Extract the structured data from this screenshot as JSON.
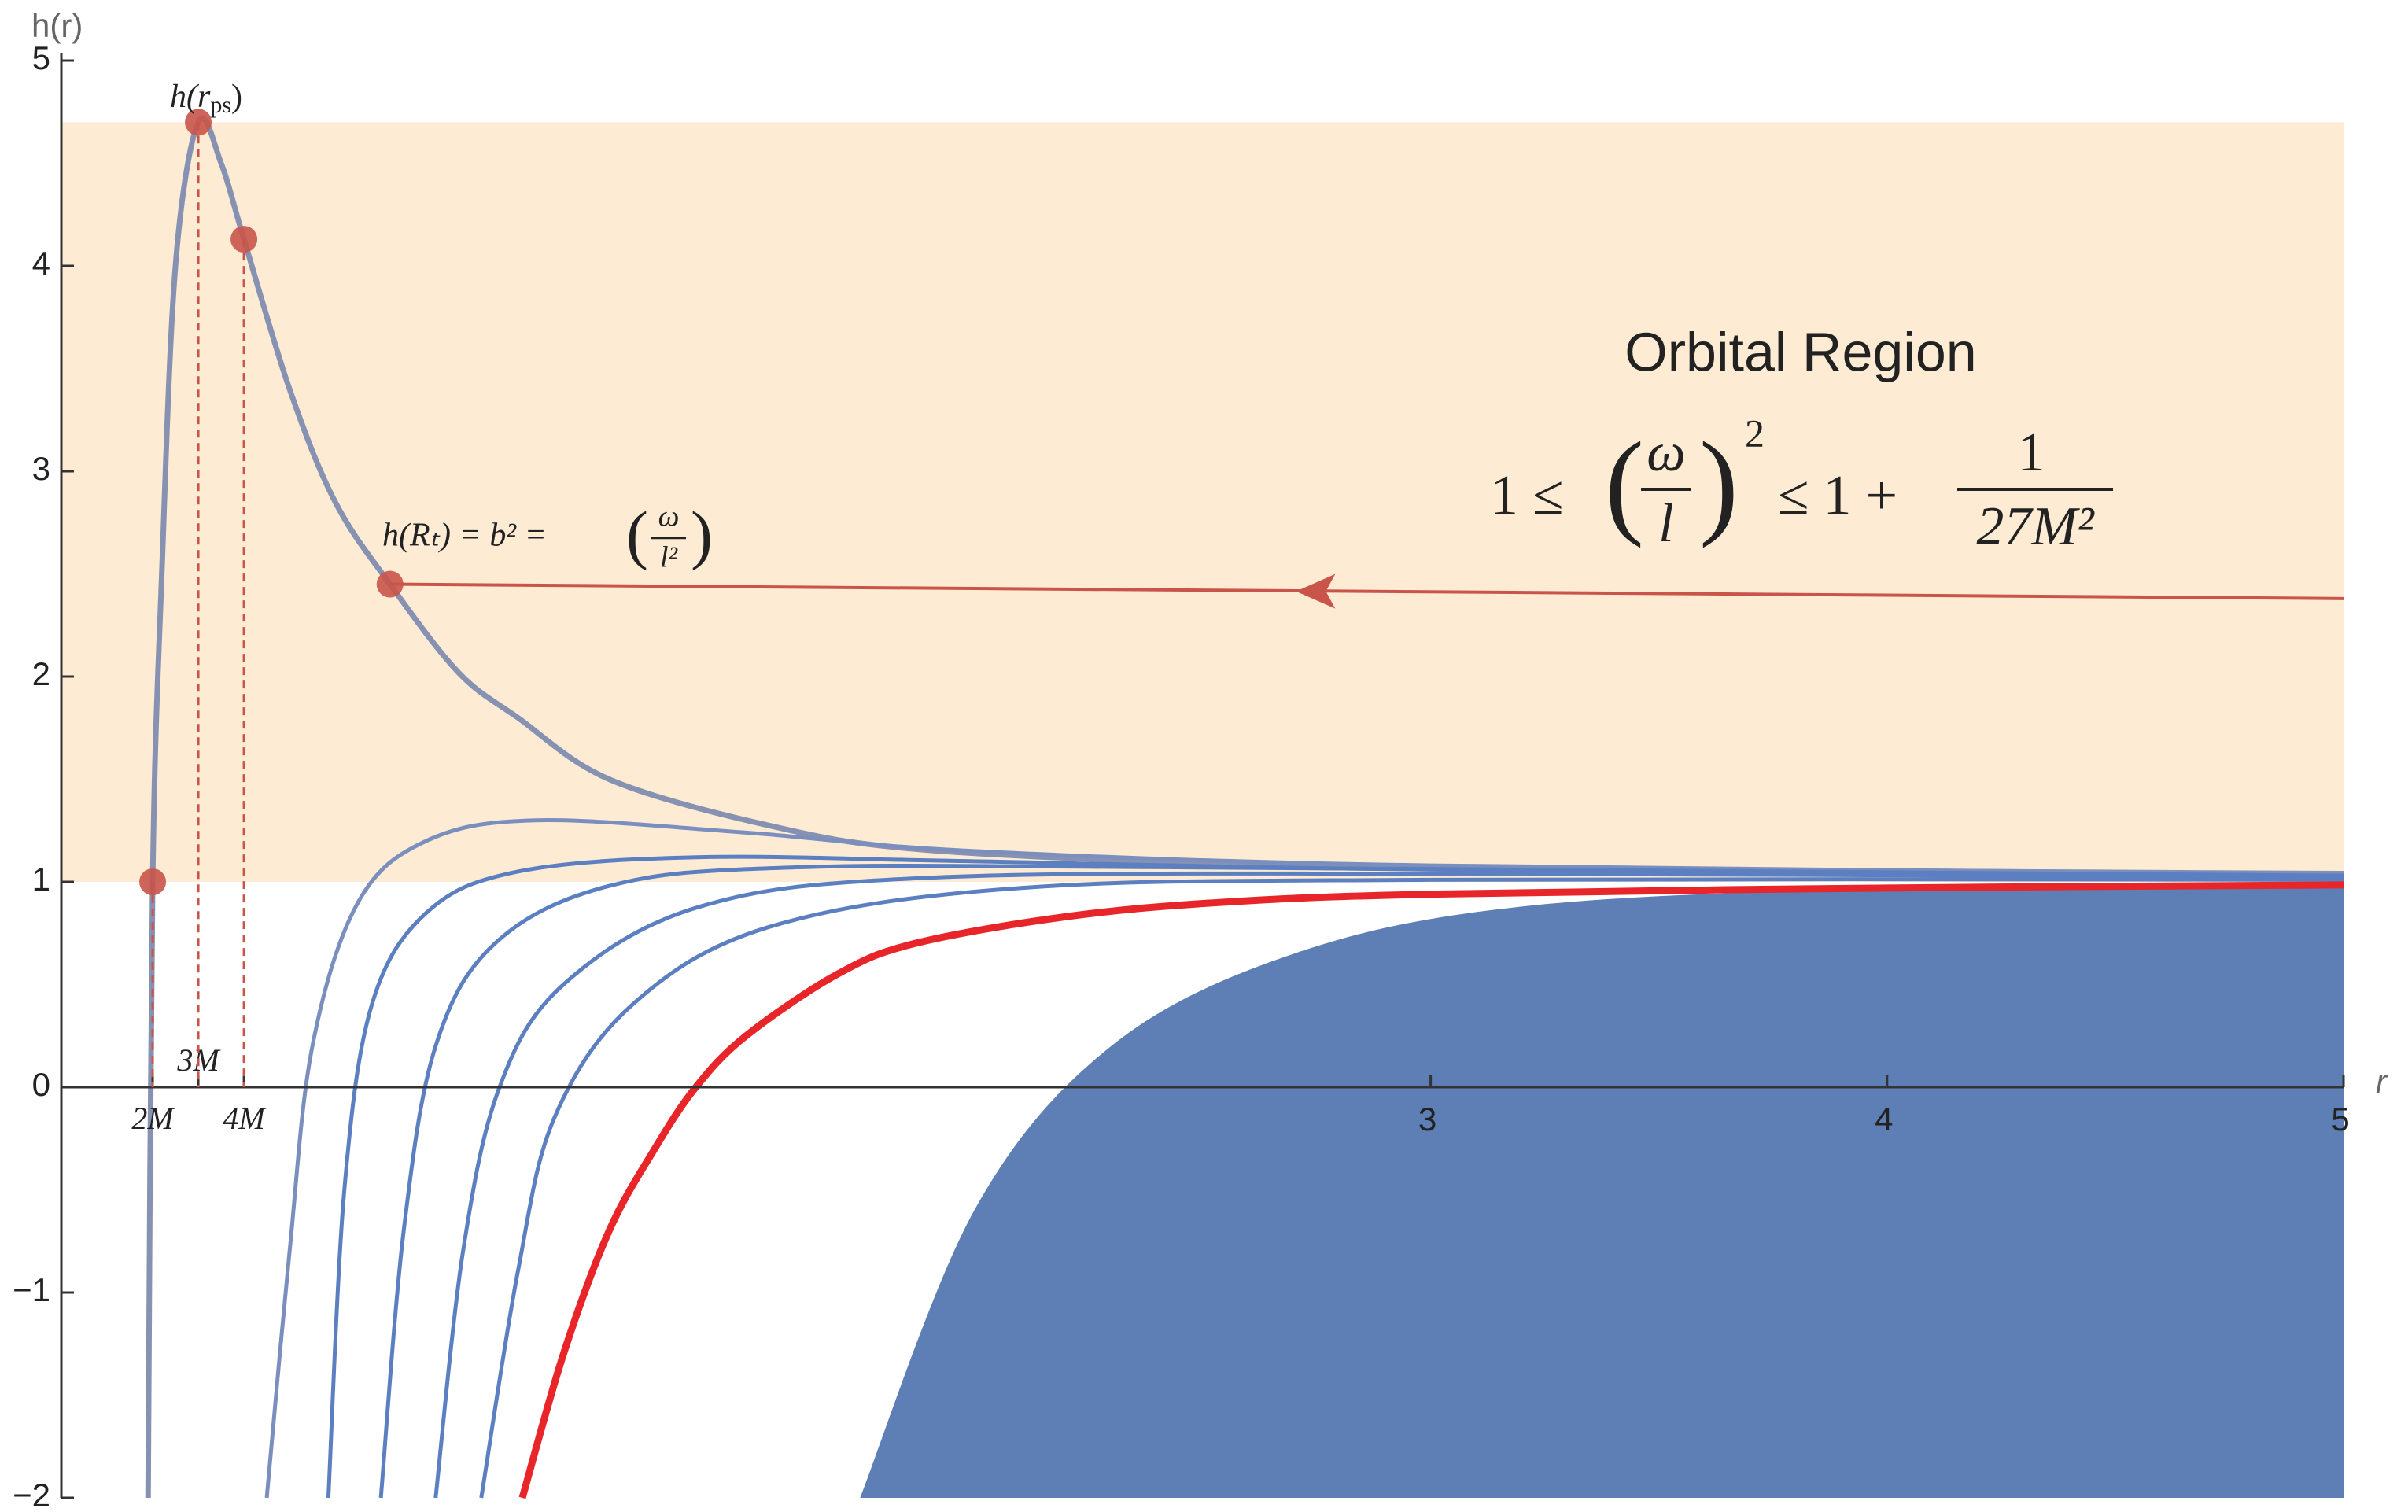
{
  "chart_data": {
    "type": "line",
    "ylabel": "h(r)",
    "xlabel": "r",
    "xlim": [
      0,
      5
    ],
    "ylim": [
      -2,
      5
    ],
    "xticks": [
      {
        "value": 0.2,
        "label": "2M"
      },
      {
        "value": 0.3,
        "label": "3M"
      },
      {
        "value": 0.4,
        "label": "4M"
      },
      3,
      4,
      5
    ],
    "yticks": [
      {
        "value": -2,
        "label": "−2"
      },
      {
        "value": -1,
        "label": "−1"
      },
      0,
      1,
      2,
      3,
      4,
      5
    ],
    "band": {
      "ylim": [
        1,
        4.7
      ],
      "color": "#fdebd4"
    },
    "area": {
      "color": "#5d7fb6",
      "x": [
        1.75,
        2.0,
        2.3,
        2.7,
        3.2,
        4,
        5
      ],
      "y": [
        -2,
        -0.6,
        0.2,
        0.65,
        0.88,
        0.97,
        1.0
      ]
    },
    "series": [
      {
        "color": "#8792b2",
        "x": [
          0.19,
          0.2,
          0.22,
          0.25,
          0.3,
          0.35,
          0.4,
          0.5,
          0.6,
          0.72,
          0.87,
          1.0,
          1.2,
          1.54,
          1.87,
          2.54,
          3.5,
          5
        ],
        "values": [
          -2,
          1.0,
          2.5,
          4.0,
          4.7,
          4.5,
          4.13,
          3.4,
          2.85,
          2.45,
          2.02,
          1.8,
          1.5,
          1.28,
          1.16,
          1.09,
          1.06,
          1.04
        ]
      },
      {
        "color": "#7b8fbf",
        "x": [
          0.45,
          0.5,
          0.55,
          0.65,
          0.8,
          1.04,
          1.5,
          2,
          3,
          5
        ],
        "values": [
          -2,
          -0.8,
          0.2,
          0.9,
          1.2,
          1.3,
          1.24,
          1.15,
          1.08,
          1.04
        ]
      },
      {
        "color": "#5b7fc0",
        "x": [
          0.585,
          0.62,
          0.68,
          0.8,
          1.0,
          1.4,
          2,
          3,
          5
        ],
        "values": [
          -2,
          -0.5,
          0.4,
          0.85,
          1.05,
          1.12,
          1.1,
          1.06,
          1.03
        ]
      },
      {
        "color": "#5b7fc0",
        "x": [
          0.7,
          0.75,
          0.82,
          0.95,
          1.2,
          1.6,
          2.5,
          5
        ],
        "values": [
          -2,
          -0.7,
          0.2,
          0.7,
          0.98,
          1.07,
          1.07,
          1.03
        ]
      },
      {
        "color": "#5b7fc0",
        "x": [
          0.82,
          0.88,
          0.96,
          1.1,
          1.4,
          1.9,
          3,
          5
        ],
        "values": [
          -2,
          -0.8,
          0,
          0.5,
          0.88,
          1.02,
          1.04,
          1.02
        ]
      },
      {
        "color": "#5b7fc0",
        "x": [
          0.92,
          1.0,
          1.08,
          1.25,
          1.55,
          2.1,
          3,
          5
        ],
        "values": [
          -2,
          -0.9,
          -0.15,
          0.4,
          0.78,
          0.97,
          1.01,
          1.01
        ]
      },
      {
        "color": "#e8262a",
        "x": [
          1.01,
          1.1,
          1.2,
          1.3,
          1.39,
          1.5,
          1.7,
          1.87,
          2.2,
          2.54,
          3,
          4,
          5
        ],
        "values": [
          -2,
          -1.3,
          -0.7,
          -0.3,
          0,
          0.25,
          0.55,
          0.7,
          0.83,
          0.9,
          0.94,
          0.97,
          0.985
        ]
      }
    ],
    "points": {
      "color": "#c9544a",
      "x": [
        0.2,
        0.3,
        0.4,
        0.72
      ],
      "y": [
        1.0,
        4.7,
        4.13,
        2.45
      ]
    },
    "arrow": {
      "color": "#c9544a",
      "x": [
        0.72,
        5
      ],
      "y": [
        2.45,
        2.38
      ]
    },
    "annotations": {
      "peak": {
        "prefix": "h(r",
        "sub": "ps",
        "suffix": ")"
      },
      "turning": {
        "prefix": "h(Rₜ) = b² =",
        "lparen": "(",
        "num": "ω",
        "den": "l²",
        "rparen": ")"
      },
      "region_title": "Orbital Region",
      "formula": {
        "lhs": "1 ≤",
        "lparen": "(",
        "num": "ω",
        "den": "l",
        "rparen": ")",
        "exp": "2",
        "mid": "≤ 1 +",
        "num2": "1",
        "den2": "27M²"
      }
    }
  }
}
